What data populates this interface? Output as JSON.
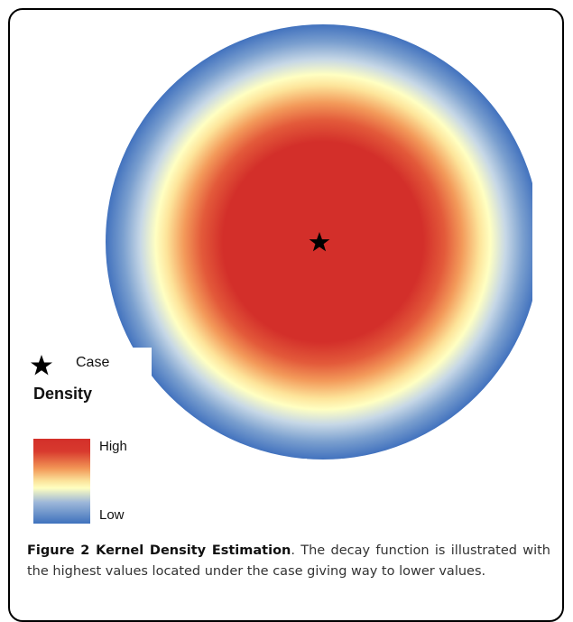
{
  "figure": {
    "label": "Figure 2 Kernel Density Estimation",
    "caption_text": ". The decay function is illustrated with the highest values located under the case giving way to lower values."
  },
  "legend": {
    "case_icon": "star-icon",
    "case_label": "Case",
    "title": "Density",
    "high_label": "High",
    "low_label": "Low"
  },
  "density_map": {
    "center_marker": "star-icon",
    "color_ramp": [
      "#d32f2a",
      "#d93a2e",
      "#f08a4e",
      "#f9d88a",
      "#ffffc0",
      "#b5c7e0",
      "#3f74bf"
    ],
    "background": "#ffffff"
  }
}
